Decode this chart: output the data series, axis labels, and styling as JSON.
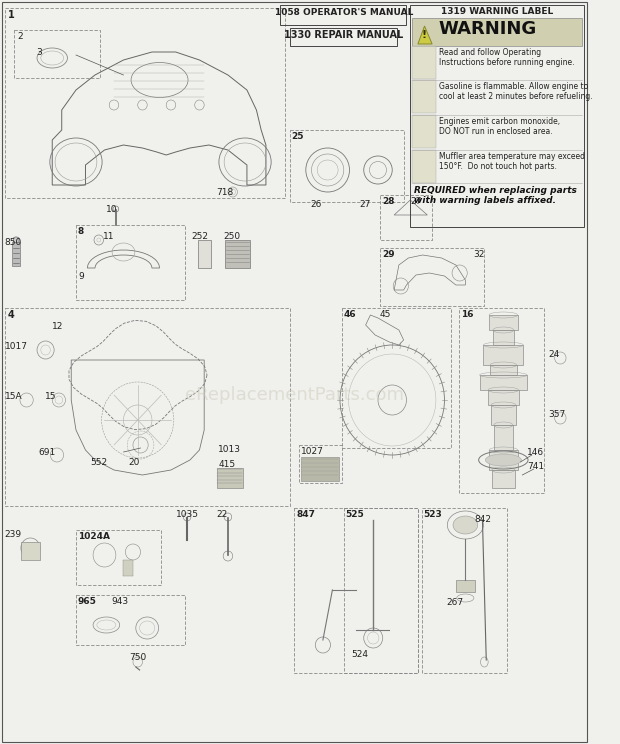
{
  "bg_color": "#f0f0ec",
  "watermark": "eReplacementParts.com",
  "warning_title": "1319 WARNING LABEL",
  "warning_header": "WARNING",
  "warning_footer": "REQUIRED when replacing parts\nwith warning labels affixed.",
  "manual_box1": "1058 OPERATOR'S MANUAL",
  "manual_box2": "1330 REPAIR MANUAL",
  "warn_row1a": "Read and follow Operating",
  "warn_row1b": "Instructions before running engine.",
  "warn_row2a": "Gasoline is flammable. Allow engine to",
  "warn_row2b": "cool at least 2 minutes before refueling.",
  "warn_row3a": "Engines emit carbon monoxide,",
  "warn_row3b": "DO NOT run in enclosed area.",
  "warn_row4a": "Muffler area temperature may exceed",
  "warn_row4b": "150°F.  Do not touch hot parts."
}
